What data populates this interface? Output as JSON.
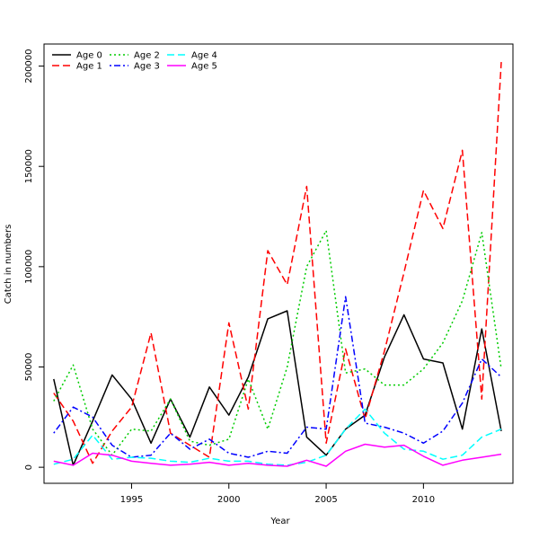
{
  "chart_data": {
    "type": "line",
    "title": "",
    "xlabel": "Year",
    "ylabel": "Catch in numbers",
    "xlim": [
      1990.5,
      2014.6
    ],
    "ylim": [
      -8000,
      211000
    ],
    "x_ticks": [
      1995,
      2000,
      2005,
      2010
    ],
    "y_ticks": [
      0,
      50000,
      100000,
      150000,
      200000
    ],
    "grid": false,
    "legend_position": "top-left",
    "x": [
      1991,
      1992,
      1993,
      1994,
      1995,
      1996,
      1997,
      1998,
      1999,
      2000,
      2001,
      2002,
      2003,
      2004,
      2005,
      2006,
      2007,
      2008,
      2009,
      2010,
      2011,
      2012,
      2013,
      2014
    ],
    "series": [
      {
        "name": "Age 0",
        "color": "#000000",
        "dash": "solid",
        "values": [
          44000,
          1000,
          23000,
          46000,
          34000,
          12000,
          34000,
          15000,
          40000,
          26000,
          45000,
          74000,
          78000,
          15000,
          6000,
          19000,
          26000,
          55000,
          76000,
          54000,
          52000,
          19000,
          69000,
          18000
        ]
      },
      {
        "name": "Age 1",
        "color": "#ff0000",
        "dash": "long-dash",
        "values": [
          37000,
          23000,
          2000,
          18000,
          30000,
          67000,
          17000,
          11000,
          5000,
          72000,
          29000,
          108000,
          91000,
          140000,
          12000,
          59000,
          24000,
          58000,
          97000,
          138000,
          119000,
          158000,
          34000,
          202000
        ]
      },
      {
        "name": "Age 2",
        "color": "#00cc00",
        "dash": "dotted",
        "values": [
          33000,
          51000,
          19000,
          6000,
          19000,
          18000,
          34000,
          13000,
          11000,
          14000,
          44000,
          19000,
          50000,
          100000,
          118000,
          47000,
          49000,
          41000,
          41000,
          49000,
          62000,
          83000,
          117000,
          49000
        ]
      },
      {
        "name": "Age 3",
        "color": "#0000ff",
        "dash": "dot-dash",
        "values": [
          17000,
          30000,
          25000,
          11000,
          5000,
          6000,
          17000,
          9000,
          14000,
          7000,
          5000,
          8000,
          7000,
          20000,
          19000,
          85000,
          22000,
          20000,
          17000,
          12000,
          18000,
          32000,
          54000,
          45000
        ]
      },
      {
        "name": "Age 4",
        "color": "#00ffff",
        "dash": "long-dash",
        "values": [
          1500,
          4000,
          16000,
          4000,
          5000,
          4500,
          3000,
          2500,
          4500,
          3000,
          3000,
          1500,
          1000,
          2500,
          6000,
          19000,
          29000,
          17000,
          9000,
          8000,
          4000,
          6000,
          15000,
          19000
        ]
      },
      {
        "name": "Age 5",
        "color": "#ff00ff",
        "dash": "solid",
        "values": [
          3000,
          1000,
          7000,
          6000,
          3000,
          2000,
          1000,
          1500,
          2500,
          1000,
          2000,
          1000,
          500,
          3500,
          500,
          8000,
          11500,
          10000,
          11000,
          5500,
          1000,
          3500,
          5000,
          6500
        ]
      }
    ]
  }
}
